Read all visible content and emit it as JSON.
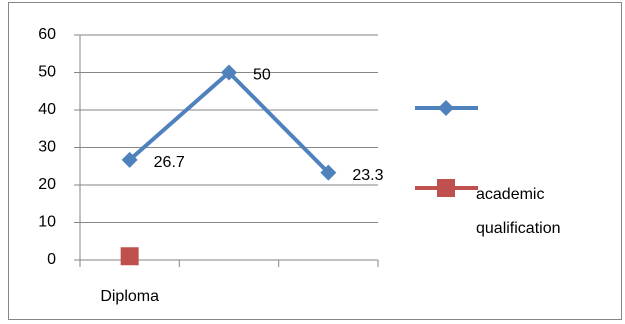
{
  "chart_data": {
    "type": "line",
    "categories": [
      "Diploma",
      null,
      null
    ],
    "series": [
      {
        "color": "#4f81bd",
        "marker": "diamond",
        "values": [
          26.7,
          50,
          23.3
        ]
      },
      {
        "name": "academic qualification",
        "color": "#c0504d",
        "marker": "square",
        "values": [
          1,
          null,
          null
        ]
      }
    ],
    "data_labels": [
      true,
      false
    ],
    "ylim": [
      0,
      60
    ],
    "yticks": [
      0,
      10,
      20,
      30,
      40,
      50,
      60
    ],
    "grid": true,
    "legend": "right"
  }
}
